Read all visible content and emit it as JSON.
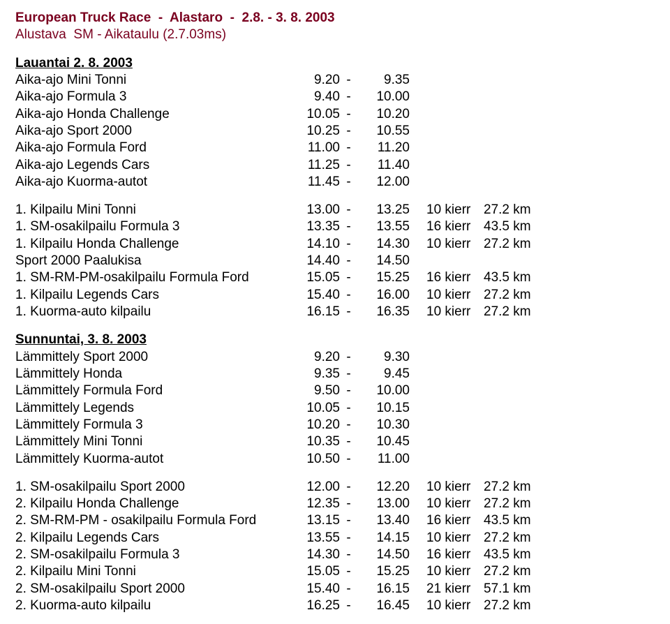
{
  "colors": {
    "title": "#7a001f",
    "text": "#000000",
    "background": "#ffffff"
  },
  "title": "European Truck Race  -  Alastaro  -  2.8. - 3. 8. 2003",
  "subtitle": "Alustava  SM - Aikataulu (2.7.03ms)",
  "days": [
    {
      "heading": "Lauantai 2. 8. 2003",
      "timerows": [
        {
          "label": "Aika-ajo Mini Tonni",
          "from": "9.20",
          "to": "9.35"
        },
        {
          "label": "Aika-ajo Formula 3",
          "from": "9.40",
          "to": "10.00"
        },
        {
          "label": "Aika-ajo Honda Challenge",
          "from": "10.05",
          "to": "10.20"
        },
        {
          "label": "Aika-ajo Sport 2000",
          "from": "10.25",
          "to": "10.55"
        },
        {
          "label": "Aika-ajo Formula Ford",
          "from": "11.00",
          "to": "11.20"
        },
        {
          "label": "Aika-ajo Legends Cars",
          "from": "11.25",
          "to": "11.40"
        },
        {
          "label": "Aika-ajo Kuorma-autot",
          "from": "11.45",
          "to": "12.00"
        }
      ],
      "racerows": [
        {
          "label": "1. Kilpailu Mini Tonni",
          "from": "13.00",
          "to": "13.25",
          "laps": "10 kierr",
          "dist": "27.2 km"
        },
        {
          "label": "1. SM-osakilpailu Formula 3",
          "from": "13.35",
          "to": "13.55",
          "laps": "16 kierr",
          "dist": "43.5 km"
        },
        {
          "label": "1. Kilpailu Honda Challenge",
          "from": "14.10",
          "to": "14.30",
          "laps": "10 kierr",
          "dist": "27.2 km"
        },
        {
          "label": "Sport 2000 Paalukisa",
          "from": "14.40",
          "to": "14.50"
        },
        {
          "label": "1. SM-RM-PM-osakilpailu Formula Ford",
          "from": "15.05",
          "to": "15.25",
          "laps": "16 kierr",
          "dist": "43.5 km"
        },
        {
          "label": "1. Kilpailu Legends Cars",
          "from": "15.40",
          "to": "16.00",
          "laps": "10 kierr",
          "dist": "27.2 km"
        },
        {
          "label": "1. Kuorma-auto kilpailu",
          "from": "16.15",
          "to": "16.35",
          "laps": "10 kierr",
          "dist": "27.2 km"
        }
      ]
    },
    {
      "heading": "Sunnuntai, 3. 8. 2003",
      "timerows": [
        {
          "label": "Lämmittely Sport 2000",
          "from": "9.20",
          "to": "9.30"
        },
        {
          "label": "Lämmittely Honda",
          "from": "9.35",
          "to": "9.45"
        },
        {
          "label": "Lämmittely Formula Ford",
          "from": "9.50",
          "to": "10.00"
        },
        {
          "label": "Lämmittely Legends",
          "from": "10.05",
          "to": "10.15"
        },
        {
          "label": "Lämmittely Formula 3",
          "from": "10.20",
          "to": "10.30"
        },
        {
          "label": "Lämmittely Mini Tonni",
          "from": "10.35",
          "to": "10.45"
        },
        {
          "label": "Lämmittely Kuorma-autot",
          "from": "10.50",
          "to": "11.00"
        }
      ],
      "racerows": [
        {
          "label": "1. SM-osakilpailu Sport 2000",
          "from": "12.00",
          "to": "12.20",
          "laps": "10 kierr",
          "dist": "27.2 km"
        },
        {
          "label": "2. Kilpailu Honda Challenge",
          "from": "12.35",
          "to": "13.00",
          "laps": "10 kierr",
          "dist": "27.2 km"
        },
        {
          "label": "2. SM-RM-PM - osakilpailu Formula Ford",
          "from": "13.15",
          "to": "13.40",
          "laps": "16 kierr",
          "dist": "43.5 km"
        },
        {
          "label": "2. Kilpailu Legends Cars",
          "from": "13.55",
          "to": "14.15",
          "laps": "10 kierr",
          "dist": "27.2 km"
        },
        {
          "label": "2. SM-osakilpailu Formula 3",
          "from": "14.30",
          "to": "14.50",
          "laps": "16 kierr",
          "dist": "43.5 km"
        },
        {
          "label": "2. Kilpailu Mini Tonni",
          "from": "15.05",
          "to": "15.25",
          "laps": "10 kierr",
          "dist": "27.2 km"
        },
        {
          "label": "2. SM-osakilpailu Sport 2000",
          "from": "15.40",
          "to": "16.15",
          "laps": "21 kierr",
          "dist": "57.1 km"
        },
        {
          "label": "2. Kuorma-auto kilpailu",
          "from": "16.25",
          "to": "16.45",
          "laps": "10 kierr",
          "dist": "27.2 km"
        }
      ]
    }
  ]
}
